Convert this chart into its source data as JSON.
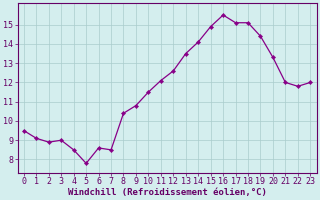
{
  "x": [
    0,
    1,
    2,
    3,
    4,
    5,
    6,
    7,
    8,
    9,
    10,
    11,
    12,
    13,
    14,
    15,
    16,
    17,
    18,
    19,
    20,
    21,
    22,
    23
  ],
  "y": [
    9.5,
    9.1,
    8.9,
    9.0,
    8.5,
    7.8,
    8.6,
    8.5,
    10.4,
    10.8,
    11.5,
    12.1,
    12.6,
    13.5,
    14.1,
    14.9,
    15.5,
    15.1,
    15.1,
    14.4,
    13.3,
    12.0,
    11.8,
    12.0
  ],
  "line_color": "#880088",
  "marker": "D",
  "marker_size": 2.2,
  "bg_color": "#d4eeee",
  "grid_color": "#aacccc",
  "xlabel": "Windchill (Refroidissement éolien,°C)",
  "xlabel_fontsize": 6.5,
  "tick_fontsize": 6.0,
  "ylabel_ticks": [
    8,
    9,
    10,
    11,
    12,
    13,
    14,
    15
  ],
  "ylim": [
    7.3,
    16.1
  ],
  "xlim": [
    -0.5,
    23.5
  ],
  "line_width": 0.9
}
